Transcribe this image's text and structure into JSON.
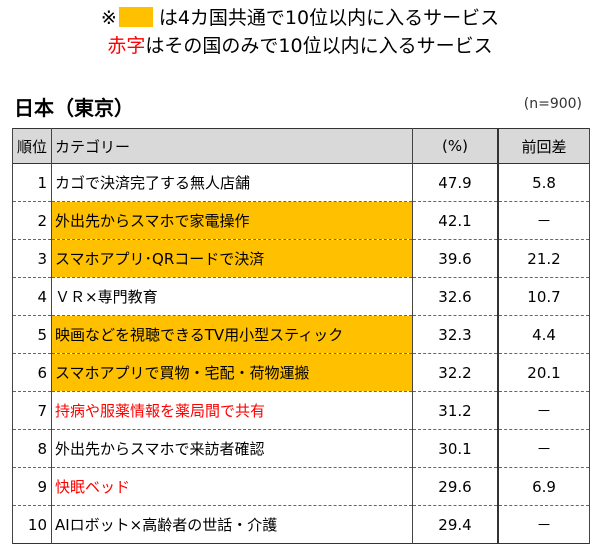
{
  "legend": {
    "line1_prefix": "※",
    "line1_text": "は4カ国共通で10位以内に入るサービス",
    "line2_red": "赤字",
    "line2_text": "はその国のみで10位以内に入るサービス",
    "highlight_color": "#ffc000",
    "red_color": "#ff0000"
  },
  "region": "日本（東京）",
  "sample_note": "(n=900)",
  "table": {
    "headers": {
      "rank": "順位",
      "category": "カテゴリー",
      "percent": "(%)",
      "diff": "前回差"
    },
    "rows": [
      {
        "rank": "1",
        "category": "カゴで決済完了する無人店舗",
        "percent": "47.9",
        "diff": "5.8",
        "highlight": false,
        "red": false
      },
      {
        "rank": "2",
        "category": "外出先からスマホで家電操作",
        "percent": "42.1",
        "diff": "－",
        "highlight": true,
        "red": false
      },
      {
        "rank": "3",
        "category": "スマホアプリ･QRコードで決済",
        "percent": "39.6",
        "diff": "21.2",
        "highlight": true,
        "red": false
      },
      {
        "rank": "4",
        "category": "ＶＲ×専門教育",
        "percent": "32.6",
        "diff": "10.7",
        "highlight": false,
        "red": false
      },
      {
        "rank": "5",
        "category": "映画などを視聴できるTV用小型スティック",
        "percent": "32.3",
        "diff": "4.4",
        "highlight": true,
        "red": false
      },
      {
        "rank": "6",
        "category": "スマホアプリで買物・宅配・荷物運搬",
        "percent": "32.2",
        "diff": "20.1",
        "highlight": true,
        "red": false
      },
      {
        "rank": "7",
        "category": "持病や服薬情報を薬局間で共有",
        "percent": "31.2",
        "diff": "－",
        "highlight": false,
        "red": true
      },
      {
        "rank": "8",
        "category": "外出先からスマホで来訪者確認",
        "percent": "30.1",
        "diff": "－",
        "highlight": false,
        "red": false
      },
      {
        "rank": "9",
        "category": "快眠ベッド",
        "percent": "29.6",
        "diff": "6.9",
        "highlight": false,
        "red": true
      },
      {
        "rank": "10",
        "category": "AIロボット×高齢者の世話・介護",
        "percent": "29.4",
        "diff": "－",
        "highlight": false,
        "red": false
      }
    ]
  }
}
